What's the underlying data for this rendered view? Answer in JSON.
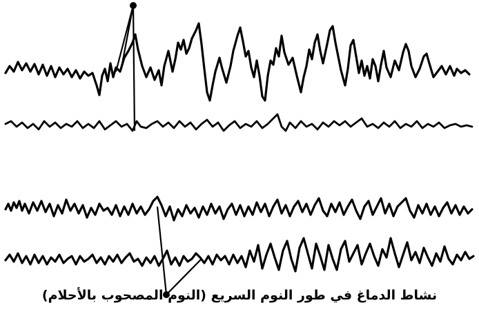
{
  "caption": "نشاط الدماغ في طور النوم السريع (النوم المصحوب بالأحلام)",
  "colors": {
    "ink": "#000000",
    "background": "#ffffff"
  },
  "traces": [
    {
      "name": "trace-1",
      "kind": "large-irregular"
    },
    {
      "name": "trace-2",
      "kind": "small-flat"
    },
    {
      "name": "trace-3",
      "kind": "medium-regular"
    },
    {
      "name": "trace-4",
      "kind": "medium-mixed"
    }
  ]
}
